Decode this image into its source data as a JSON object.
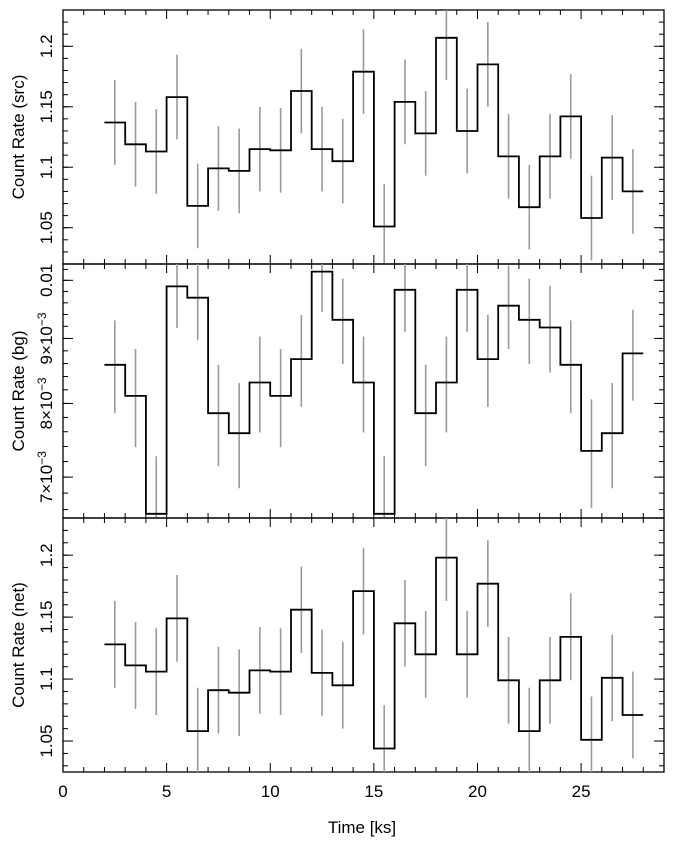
{
  "chart_data": [
    {
      "type": "line",
      "ylabel": "Count Rate (src)",
      "xlim": [
        0,
        29
      ],
      "ylim": [
        1.02,
        1.23
      ],
      "yticks_major": [
        1.05,
        1.1,
        1.15,
        1.2
      ],
      "ytick_labels": [
        "1.05",
        "1.1",
        "1.15",
        "1.2"
      ],
      "series": [
        {
          "x": [
            2.5,
            3.5,
            4.5,
            5.5,
            6.5,
            7.5,
            8.5,
            9.5,
            10.5,
            11.5,
            12.5,
            13.5,
            14.5,
            15.5,
            16.5,
            17.5,
            18.5,
            19.5,
            20.5,
            21.5,
            22.5,
            23.5,
            24.5,
            25.5,
            26.5,
            27.5
          ],
          "x_halfwidth": 0.5,
          "y": [
            1.137,
            1.119,
            1.113,
            1.158,
            1.068,
            1.099,
            1.097,
            1.115,
            1.114,
            1.163,
            1.115,
            1.105,
            1.179,
            1.051,
            1.154,
            1.128,
            1.207,
            1.13,
            1.185,
            1.109,
            1.067,
            1.109,
            1.142,
            1.058,
            1.108,
            1.08
          ],
          "yerr": [
            0.035,
            0.035,
            0.035,
            0.035,
            0.035,
            0.035,
            0.035,
            0.035,
            0.035,
            0.035,
            0.035,
            0.035,
            0.035,
            0.035,
            0.035,
            0.035,
            0.035,
            0.035,
            0.035,
            0.035,
            0.035,
            0.035,
            0.035,
            0.035,
            0.035,
            0.035
          ]
        }
      ]
    },
    {
      "type": "line",
      "ylabel": "Count Rate (bg)",
      "ylabel_display": "Count Rate (bg)",
      "scale": "log",
      "xlim": [
        0,
        29
      ],
      "ylim": [
        0.0065,
        0.0103
      ],
      "yticks_major": [
        0.007,
        0.008,
        0.009,
        0.01
      ],
      "ytick_labels": [
        {
          "mant": "7×10",
          "exp": "−3"
        },
        {
          "mant": "8×10",
          "exp": "−3"
        },
        {
          "mant": "9×10",
          "exp": "−3"
        },
        {
          "mant": "0.01",
          "exp": ""
        }
      ],
      "series": [
        {
          "x": [
            2.5,
            3.5,
            4.5,
            5.5,
            6.5,
            7.5,
            8.5,
            9.5,
            10.5,
            11.5,
            12.5,
            13.5,
            14.5,
            15.5,
            16.5,
            17.5,
            18.5,
            19.5,
            20.5,
            21.5,
            22.5,
            23.5,
            24.5,
            25.5,
            26.5,
            27.5
          ],
          "x_halfwidth": 0.5,
          "y": [
            0.00858,
            0.00811,
            0.00655,
            0.00989,
            0.00969,
            0.00786,
            0.00758,
            0.00831,
            0.00811,
            0.00867,
            0.01016,
            0.00931,
            0.00831,
            0.00655,
            0.00983,
            0.00786,
            0.00831,
            0.00983,
            0.00867,
            0.00955,
            0.00931,
            0.00918,
            0.00858,
            0.00734,
            0.00758,
            0.00876
          ],
          "yerr_lo": [
            0.00072,
            0.00072,
            0.00072,
            0.00072,
            0.00072,
            0.00072,
            0.00072,
            0.00072,
            0.00072,
            0.00072,
            0.00072,
            0.00072,
            0.00072,
            0.00072,
            0.00072,
            0.00072,
            0.00072,
            0.00072,
            0.00072,
            0.00072,
            0.00072,
            0.00072,
            0.00072,
            0.00072,
            0.00072,
            0.00072
          ],
          "yerr_hi": [
            0.00072,
            0.00072,
            0.00072,
            0.00072,
            0.00072,
            0.00072,
            0.00072,
            0.00072,
            0.00072,
            0.00072,
            0.00072,
            0.00072,
            0.00072,
            0.00072,
            0.00072,
            0.00072,
            0.00072,
            0.00072,
            0.00072,
            0.00072,
            0.00072,
            0.00072,
            0.00072,
            0.00072,
            0.00072,
            0.00072
          ]
        }
      ]
    },
    {
      "type": "line",
      "ylabel": "Count Rate (net)",
      "xlabel": "Time [ks]",
      "xlim": [
        0,
        29
      ],
      "xticks_major": [
        0,
        5,
        10,
        15,
        20,
        25
      ],
      "xtick_labels": [
        "0",
        "5",
        "10",
        "15",
        "20",
        "25"
      ],
      "ylim": [
        1.025,
        1.23
      ],
      "yticks_major": [
        1.05,
        1.1,
        1.15,
        1.2
      ],
      "ytick_labels": [
        "1.05",
        "1.1",
        "1.15",
        "1.2"
      ],
      "series": [
        {
          "x": [
            2.5,
            3.5,
            4.5,
            5.5,
            6.5,
            7.5,
            8.5,
            9.5,
            10.5,
            11.5,
            12.5,
            13.5,
            14.5,
            15.5,
            16.5,
            17.5,
            18.5,
            19.5,
            20.5,
            21.5,
            22.5,
            23.5,
            24.5,
            25.5,
            26.5,
            27.5
          ],
          "x_halfwidth": 0.5,
          "y": [
            1.128,
            1.111,
            1.106,
            1.149,
            1.058,
            1.091,
            1.089,
            1.107,
            1.106,
            1.156,
            1.105,
            1.095,
            1.171,
            1.044,
            1.145,
            1.12,
            1.198,
            1.12,
            1.177,
            1.099,
            1.058,
            1.099,
            1.134,
            1.051,
            1.101,
            1.071
          ],
          "yerr": [
            0.035,
            0.035,
            0.035,
            0.035,
            0.035,
            0.035,
            0.035,
            0.035,
            0.035,
            0.035,
            0.035,
            0.035,
            0.035,
            0.035,
            0.035,
            0.035,
            0.035,
            0.035,
            0.035,
            0.035,
            0.035,
            0.035,
            0.035,
            0.035,
            0.035,
            0.035
          ]
        }
      ]
    }
  ],
  "colors": {
    "errorbar": "#9a9a9a",
    "line": "#000000"
  }
}
